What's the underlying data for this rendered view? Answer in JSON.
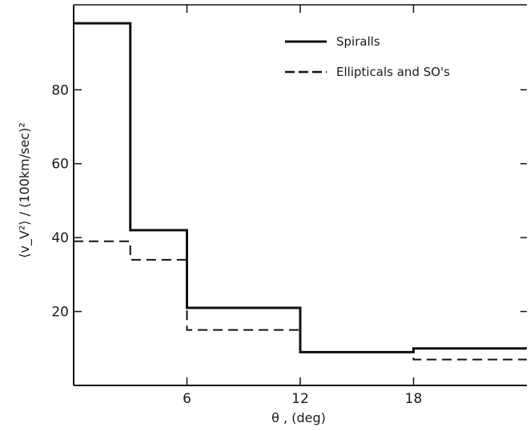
{
  "chart_data": {
    "type": "line",
    "title": "",
    "xlabel": "θ , (deg)",
    "ylabel": "⟨v_V²⟩ / (100km/sec)²",
    "xlim": [
      0,
      24
    ],
    "ylim": [
      0,
      103
    ],
    "x_ticks": [
      6,
      12,
      18
    ],
    "x_tick_labels": [
      "6",
      "12",
      "18"
    ],
    "y_ticks": [
      20,
      40,
      60,
      80
    ],
    "y_tick_labels": [
      "20",
      "40",
      "60",
      "80"
    ],
    "grid": false,
    "legend_position": "top-right",
    "series": [
      {
        "name": "Spiralls",
        "style": "solid",
        "step": "post",
        "x": [
          0,
          3,
          6,
          12,
          18,
          24
        ],
        "y": [
          98,
          42,
          21,
          9,
          10,
          10
        ]
      },
      {
        "name": "Ellipticals and SO's",
        "style": "dashed",
        "step": "post",
        "x": [
          0,
          3,
          6,
          12,
          18,
          24
        ],
        "y": [
          39,
          34,
          15,
          9,
          7,
          7
        ]
      }
    ]
  }
}
